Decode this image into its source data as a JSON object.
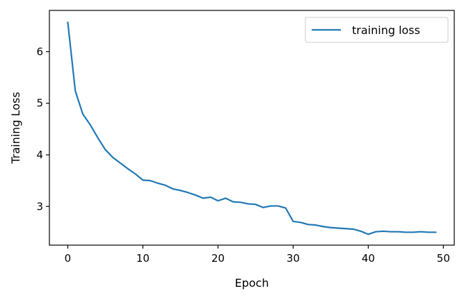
{
  "chart_data": {
    "type": "line",
    "xlabel": "Epoch",
    "ylabel": "Training Loss",
    "xlim": [
      -2.45,
      51.45
    ],
    "ylim": [
      2.25,
      6.8
    ],
    "xticks": [
      0,
      10,
      20,
      30,
      40,
      50
    ],
    "yticks": [
      3,
      4,
      5,
      6
    ],
    "grid": false,
    "legend_position": "top-right",
    "series": [
      {
        "name": "training loss",
        "color": "#1f77b4",
        "x": [
          0,
          1,
          2,
          3,
          4,
          5,
          6,
          7,
          8,
          9,
          10,
          11,
          12,
          13,
          14,
          15,
          16,
          17,
          18,
          19,
          20,
          21,
          22,
          23,
          24,
          25,
          26,
          27,
          28,
          29,
          30,
          31,
          32,
          33,
          34,
          35,
          36,
          37,
          38,
          39,
          40,
          41,
          42,
          43,
          44,
          45,
          46,
          47,
          48,
          49
        ],
        "y": [
          6.57,
          5.24,
          4.79,
          4.58,
          4.33,
          4.1,
          3.95,
          3.84,
          3.73,
          3.63,
          3.51,
          3.5,
          3.45,
          3.41,
          3.34,
          3.31,
          3.27,
          3.22,
          3.16,
          3.18,
          3.11,
          3.16,
          3.09,
          3.08,
          3.05,
          3.04,
          2.98,
          3.01,
          3.01,
          2.97,
          2.71,
          2.69,
          2.65,
          2.64,
          2.61,
          2.59,
          2.58,
          2.57,
          2.56,
          2.52,
          2.46,
          2.51,
          2.52,
          2.51,
          2.51,
          2.5,
          2.5,
          2.51,
          2.5,
          2.5
        ]
      }
    ]
  }
}
